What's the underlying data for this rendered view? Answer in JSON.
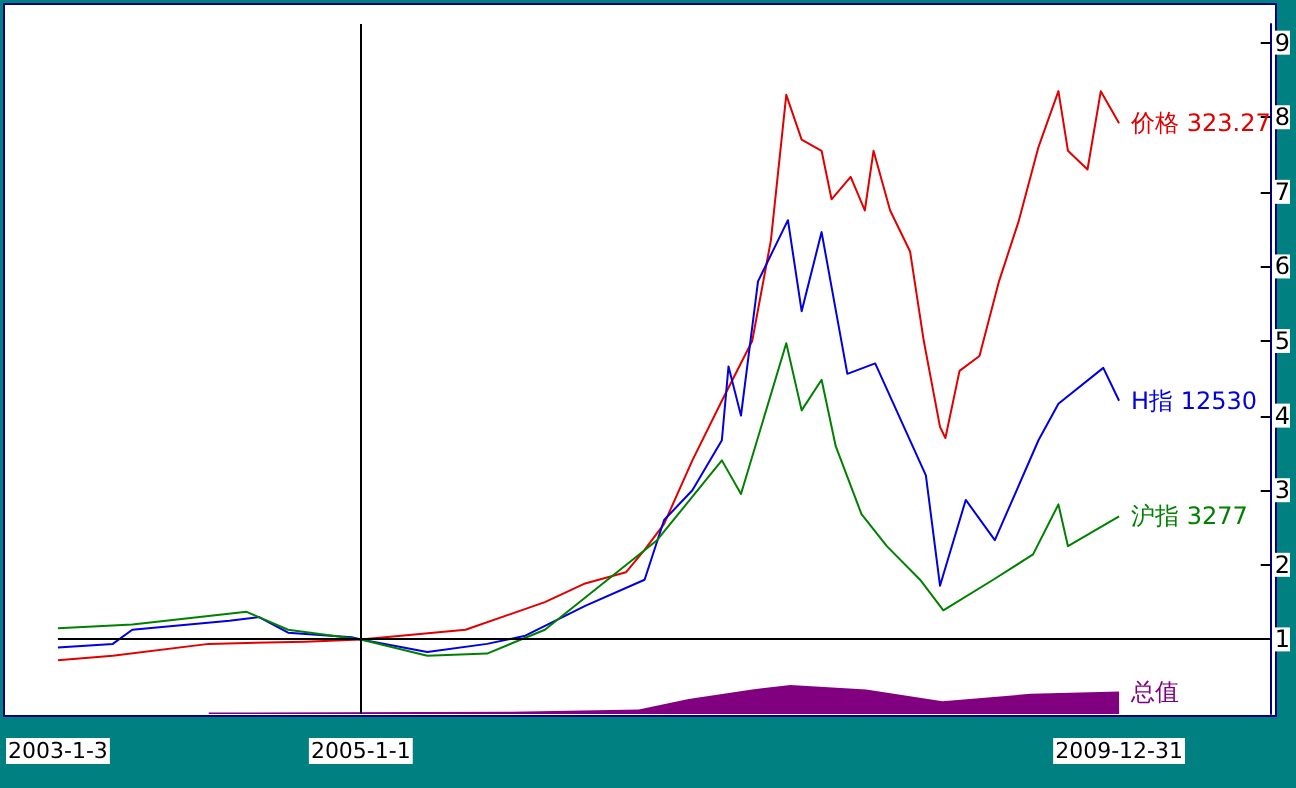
{
  "chart_data": {
    "type": "line",
    "xlim": [
      "2003-01-03",
      "2010-12-31"
    ],
    "ylim": [
      0,
      9.25
    ],
    "xticks": [
      {
        "value": "2003-01-03",
        "label": "2003-1-3"
      },
      {
        "value": "2005-01-01",
        "label": "2005-1-1"
      },
      {
        "value": "2009-12-31",
        "label": "2009-12-31"
      }
    ],
    "yticks": [
      1,
      2,
      3,
      4,
      5,
      6,
      7,
      8,
      9
    ],
    "ref_lines": [
      {
        "axis": "x",
        "value": "2005-01-01",
        "color": "#000000"
      },
      {
        "axis": "y",
        "value": 1,
        "color": "#000000"
      }
    ],
    "marker": "none",
    "series": [
      {
        "name": "价格 323.27",
        "color": "#e00000",
        "x": [
          "2003-01-03",
          "2003-05-15",
          "2004-01-01",
          "2004-08-20",
          "2005-01-01",
          "2005-09-10",
          "2006-03-20",
          "2006-06-25",
          "2006-10-01",
          "2006-11-15",
          "2007-01-01",
          "2007-03-10",
          "2007-05-20",
          "2007-08-01",
          "2007-09-15",
          "2007-10-22",
          "2007-11-28",
          "2008-01-15",
          "2008-02-08",
          "2008-03-25",
          "2008-04-28",
          "2008-05-19",
          "2008-06-28",
          "2008-08-15",
          "2008-09-17",
          "2008-10-26",
          "2008-11-08",
          "2008-12-12",
          "2009-01-29",
          "2009-03-17",
          "2009-05-03",
          "2009-06-20",
          "2009-08-07",
          "2009-08-30",
          "2009-10-16",
          "2009-11-17",
          "2009-12-31"
        ],
        "values": [
          0.72,
          0.78,
          0.94,
          0.97,
          1.0,
          1.13,
          1.5,
          1.75,
          1.9,
          2.2,
          2.55,
          3.4,
          4.2,
          5.0,
          6.35,
          8.3,
          7.7,
          7.55,
          6.9,
          7.2,
          6.75,
          7.55,
          6.75,
          6.2,
          5.0,
          3.85,
          3.7,
          4.6,
          4.8,
          5.8,
          6.6,
          7.6,
          8.35,
          7.55,
          7.3,
          8.35,
          7.92
        ]
      },
      {
        "name": "H指 12530",
        "color": "#0000e0",
        "x": [
          "2003-01-03",
          "2003-05-15",
          "2003-07-01",
          "2004-02-20",
          "2004-05-01",
          "2004-07-10",
          "2004-12-10",
          "2005-01-01",
          "2005-06-10",
          "2005-11-01",
          "2006-02-01",
          "2006-06-25",
          "2006-11-15",
          "2007-01-01",
          "2007-03-10",
          "2007-05-20",
          "2007-06-05",
          "2007-07-05",
          "2007-08-15",
          "2007-10-26",
          "2007-11-28",
          "2008-01-15",
          "2008-03-17",
          "2008-05-23",
          "2008-09-22",
          "2008-10-26",
          "2008-12-27",
          "2009-03-07",
          "2009-06-20",
          "2009-08-07",
          "2009-11-23",
          "2009-12-31"
        ],
        "values": [
          0.89,
          0.94,
          1.13,
          1.25,
          1.3,
          1.09,
          1.03,
          1.0,
          0.83,
          0.94,
          1.05,
          1.45,
          1.8,
          2.6,
          3.0,
          3.67,
          4.66,
          4.0,
          5.8,
          6.62,
          5.4,
          6.46,
          4.56,
          4.7,
          3.2,
          1.72,
          2.87,
          2.33,
          3.67,
          4.16,
          4.64,
          4.2
        ]
      },
      {
        "name": "沪指 3277",
        "color": "#008000",
        "x": [
          "2003-01-03",
          "2003-07-01",
          "2004-04-01",
          "2004-07-10",
          "2005-01-01",
          "2005-06-10",
          "2005-11-01",
          "2006-03-20",
          "2006-12-15",
          "2007-05-20",
          "2007-07-05",
          "2007-10-22",
          "2007-11-28",
          "2008-01-15",
          "2008-02-18",
          "2008-04-20",
          "2008-06-20",
          "2008-09-08",
          "2008-11-03",
          "2009-03-03",
          "2009-06-07",
          "2009-08-07",
          "2009-08-30",
          "2009-12-31"
        ],
        "values": [
          1.15,
          1.2,
          1.37,
          1.13,
          1.0,
          0.78,
          0.81,
          1.13,
          2.33,
          3.4,
          2.95,
          4.97,
          4.07,
          4.48,
          3.59,
          2.68,
          2.25,
          1.8,
          1.39,
          1.8,
          2.14,
          2.81,
          2.25,
          2.65
        ]
      },
      {
        "name": "总值",
        "type": "area",
        "color": "#800080",
        "x": [
          "2004-01-01",
          "2006-01-01",
          "2006-11-01",
          "2007-03-01",
          "2007-08-01",
          "2007-11-01",
          "2008-05-01",
          "2008-11-01",
          "2009-06-01",
          "2009-12-31"
        ],
        "values": [
          0.02,
          0.03,
          0.06,
          0.2,
          0.33,
          0.39,
          0.33,
          0.17,
          0.27,
          0.3
        ]
      }
    ]
  }
}
